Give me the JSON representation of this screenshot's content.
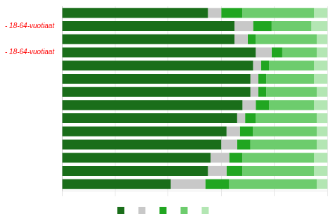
{
  "chart_data": {
    "type": "bar",
    "orientation": "horizontal",
    "stacked": true,
    "categories": [
      null,
      "- 18-64-vuotiaat",
      null,
      "- 18-64-vuotiaat",
      null,
      null,
      null,
      null,
      null,
      null,
      null,
      null,
      null,
      null
    ],
    "series": [
      {
        "color": "#1a6e1a",
        "values": [
          55,
          65,
          65,
          73,
          72,
          71,
          71,
          68,
          66,
          62,
          60,
          56,
          55,
          41
        ]
      },
      {
        "color": "#c8c8c8",
        "values": [
          5,
          7,
          5,
          6,
          3,
          3,
          3,
          5,
          3,
          5,
          6,
          7,
          7,
          13
        ]
      },
      {
        "color": "#21a621",
        "values": [
          8,
          7,
          3,
          4,
          3,
          3,
          3,
          5,
          4,
          5,
          5,
          5,
          6,
          9
        ]
      },
      {
        "color": "#6dcc6d",
        "values": [
          27,
          15,
          23,
          13,
          17,
          18,
          19,
          17,
          23,
          24,
          25,
          27,
          27,
          33
        ]
      },
      {
        "color": "#b3e6b3",
        "values": [
          5,
          6,
          4,
          4,
          5,
          5,
          4,
          5,
          4,
          4,
          4,
          5,
          5,
          4
        ]
      }
    ],
    "xlim": [
      0,
      100
    ],
    "xticks": [
      0,
      20,
      40,
      60,
      80,
      100
    ],
    "grid": true,
    "tick_labels": "y",
    "legend": "bottom"
  }
}
